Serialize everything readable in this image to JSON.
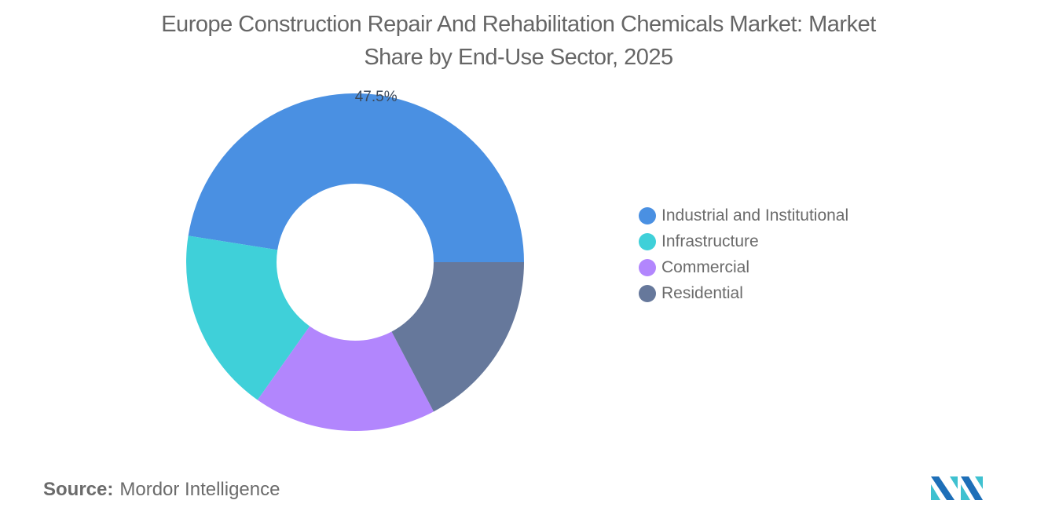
{
  "title": {
    "line1": "Europe Construction Repair And Rehabilitation Chemicals Market: Market",
    "line2": "Share by End-Use Sector, 2025"
  },
  "legend": {
    "items": [
      {
        "label": "Industrial and Institutional",
        "color": "#4a90e2"
      },
      {
        "label": "Infrastructure",
        "color": "#3fd0d9"
      },
      {
        "label": "Commercial",
        "color": "#b286fd"
      },
      {
        "label": "Residential",
        "color": "#66789b"
      }
    ]
  },
  "source": {
    "key": "Source:",
    "value": "Mordor Intelligence"
  },
  "logo": {
    "icon": "mordor-intelligence-logo-icon",
    "colors": [
      "#1e6fb8",
      "#3fc1d0"
    ]
  },
  "chart_data": {
    "type": "pie",
    "variant": "donut",
    "title": "Europe Construction Repair And Rehabilitation Chemicals Market: Market Share by End-Use Sector, 2025",
    "categories": [
      "Industrial and Institutional",
      "Infrastructure",
      "Commercial",
      "Residential"
    ],
    "values": [
      47.5,
      17.7,
      17.5,
      17.3
    ],
    "unit": "%",
    "data_labels": [
      {
        "category": "Industrial and Institutional",
        "text": "47.5%"
      }
    ],
    "colors": [
      "#4a90e2",
      "#3fd0d9",
      "#b286fd",
      "#66789b"
    ],
    "start_angle_deg_clockwise_from_top": 90,
    "direction": "counterclockwise",
    "legend_position": "right",
    "center": [
      452,
      334
    ],
    "outer_radius": 215,
    "inner_radius": 100
  }
}
